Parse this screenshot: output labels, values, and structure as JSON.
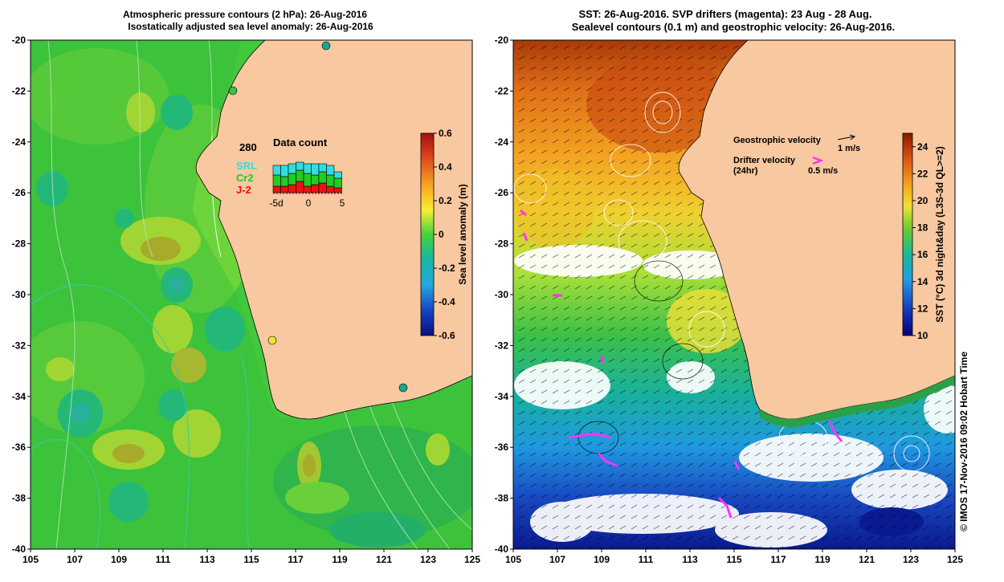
{
  "left_panel": {
    "title_line1": "Atmospheric pressure contours (2 hPa): 26-Aug-2016",
    "title_line2": "Isostatically adjusted sea level anomaly: 26-Aug-2016",
    "x_ticks": [
      "105",
      "107",
      "109",
      "111",
      "113",
      "115",
      "117",
      "119",
      "121",
      "123",
      "125"
    ],
    "y_ticks": [
      "-20",
      "-22",
      "-24",
      "-26",
      "-28",
      "-30",
      "-32",
      "-34",
      "-36",
      "-38",
      "-40"
    ],
    "colorbar": {
      "label": "Sea level anomaly (m)",
      "ticks": [
        "0.6",
        "0.4",
        "0.2",
        "0",
        "-0.2",
        "-0.4",
        "-0.6"
      ],
      "range": [
        -0.6,
        0.6
      ]
    },
    "data_count": {
      "title": "Data count",
      "max_label": "280",
      "series": [
        {
          "name": "SRL",
          "color": "#33dddd"
        },
        {
          "name": "Cr2",
          "color": "#22cc22"
        },
        {
          "name": "J-2",
          "color": "#ee1111"
        }
      ],
      "x_ticks": [
        "-5d",
        "0",
        "5"
      ]
    }
  },
  "right_panel": {
    "title_line1": "SST: 26-Aug-2016. SVP drifters (magenta): 23 Aug - 28 Aug.",
    "title_line2": "Sealevel contours (0.1 m) and geostrophic velocity: 26-Aug-2016.",
    "x_ticks": [
      "105",
      "107",
      "109",
      "111",
      "113",
      "115",
      "117",
      "119",
      "121",
      "123",
      "125"
    ],
    "y_ticks": [
      "-20",
      "-22",
      "-24",
      "-26",
      "-28",
      "-30",
      "-32",
      "-34",
      "-36",
      "-38",
      "-40"
    ],
    "colorbar": {
      "label": "SST (°C) 3d night&day (L3S-3d QL>=2)",
      "ticks": [
        "24",
        "22",
        "20",
        "18",
        "16",
        "14",
        "12",
        "10"
      ],
      "range": [
        10,
        25
      ]
    },
    "legend": {
      "geo_label": "Geostrophic velocity",
      "geo_scale": "1 m/s",
      "drifter_label": "Drifter velocity",
      "drifter_sub": "(24hr)",
      "drifter_scale": "0.5 m/s"
    }
  },
  "credit": "© IMOS 17-Nov-2016 09:02 Hobart Time",
  "colors": {
    "land": "#f8c8a0",
    "drifter": "#ff33ff",
    "sla_low": "#081080",
    "sla_high": "#a01010",
    "sst_low": "#00007a",
    "sst_high": "#8a1800"
  }
}
